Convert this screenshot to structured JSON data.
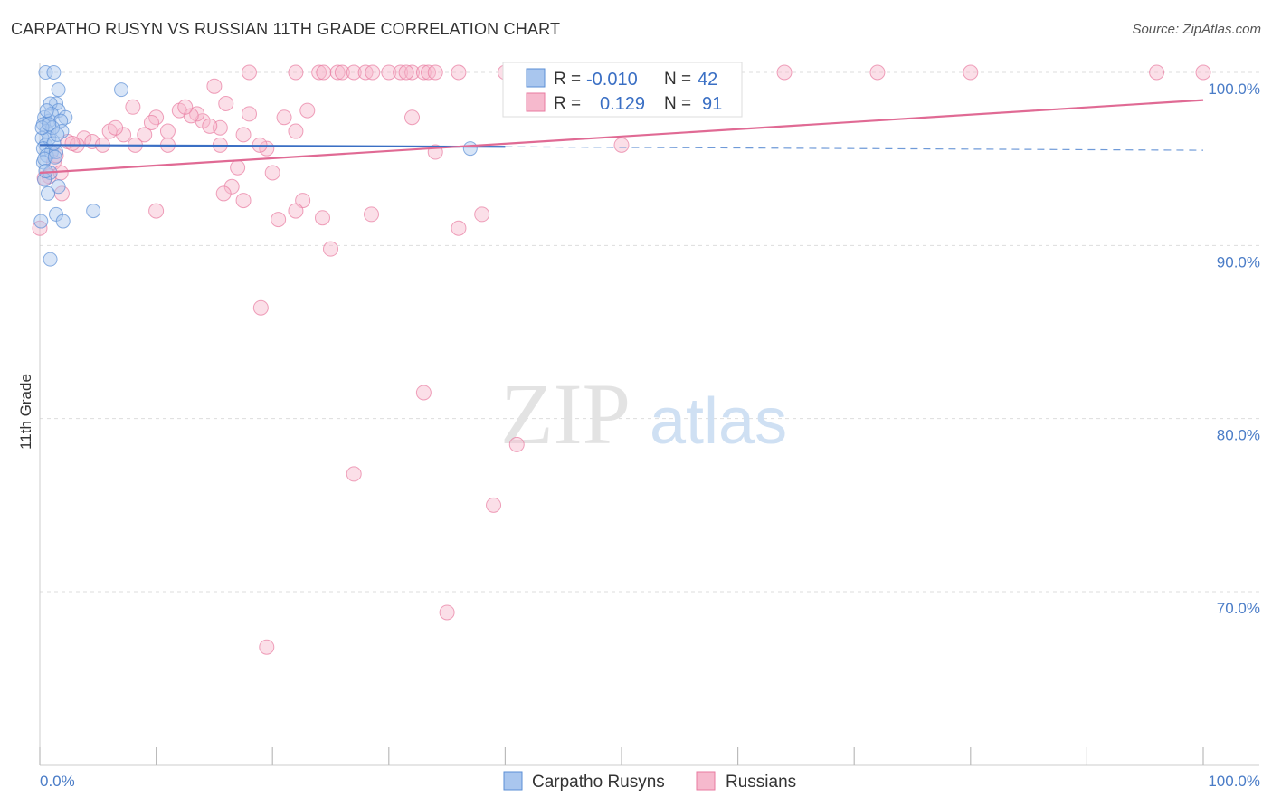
{
  "title": "CARPATHO RUSYN VS RUSSIAN 11TH GRADE CORRELATION CHART",
  "source": "Source: ZipAtlas.com",
  "watermark": {
    "zip": "ZIP",
    "atlas": "atlas"
  },
  "colors": {
    "blue": "#5b8fd6",
    "blue_fill": "#a9c6ee",
    "pink": "#e87aa0",
    "pink_fill": "#f6b9cd",
    "grid": "#dddddd",
    "tick_label": "#4a7cc7"
  },
  "chart_data": {
    "type": "scatter",
    "title": "CARPATHO RUSYN VS RUSSIAN 11TH GRADE CORRELATION CHART",
    "xlabel": "",
    "ylabel": "11th Grade",
    "xlim": [
      0,
      100
    ],
    "ylim": [
      60,
      100
    ],
    "x_tick_labels": [
      "0.0%",
      "100.0%"
    ],
    "y_tick_labels": [
      {
        "value": 100,
        "label": "100.0%"
      },
      {
        "value": 90,
        "label": "90.0%"
      },
      {
        "value": 80,
        "label": "80.0%"
      },
      {
        "value": 70,
        "label": "70.0%"
      }
    ],
    "legend": {
      "entries": [
        {
          "r_label": "R =",
          "r_value": "-0.010",
          "n_label": "N =",
          "n_value": "42"
        },
        {
          "r_label": "R =",
          "r_value": "0.129",
          "n_label": "N =",
          "n_value": "91"
        }
      ]
    },
    "series": [
      {
        "name": "Carpatho Rusyns",
        "r": -0.01,
        "n": 42,
        "trend": {
          "x0": 0,
          "y0": 95.8,
          "x1": 40,
          "y1": 95.7,
          "dash_x1": 100,
          "dash_y1": 95.5
        },
        "points": [
          [
            0.5,
            100
          ],
          [
            1.2,
            100
          ],
          [
            7,
            99
          ],
          [
            1.6,
            99
          ],
          [
            1.4,
            98.2
          ],
          [
            0.9,
            98.2
          ],
          [
            1.6,
            97.8
          ],
          [
            0.4,
            97.4
          ],
          [
            0.8,
            97.2
          ],
          [
            1.0,
            97.6
          ],
          [
            2.2,
            97.4
          ],
          [
            0.3,
            97.0
          ],
          [
            1.8,
            97.2
          ],
          [
            0.6,
            96.6
          ],
          [
            0.2,
            96.2
          ],
          [
            0.5,
            95.8
          ],
          [
            0.8,
            96.2
          ],
          [
            0.3,
            95.6
          ],
          [
            1.0,
            95.4
          ],
          [
            0.6,
            95.2
          ],
          [
            1.4,
            95.4
          ],
          [
            0.3,
            94.8
          ],
          [
            0.9,
            94.2
          ],
          [
            0.4,
            93.8
          ],
          [
            1.6,
            93.4
          ],
          [
            0.7,
            93.0
          ],
          [
            1.4,
            91.8
          ],
          [
            2.0,
            91.4
          ],
          [
            0.1,
            91.4
          ],
          [
            4.6,
            92.0
          ],
          [
            0.9,
            89.2
          ],
          [
            37,
            95.6
          ],
          [
            1.9,
            96.6
          ],
          [
            0.6,
            97.8
          ],
          [
            1.1,
            96.8
          ],
          [
            0.4,
            95.0
          ],
          [
            1.2,
            95.9
          ],
          [
            0.2,
            96.8
          ],
          [
            1.5,
            96.4
          ],
          [
            0.8,
            97.0
          ],
          [
            0.5,
            94.3
          ],
          [
            1.3,
            95.1
          ]
        ]
      },
      {
        "name": "Russians",
        "r": 0.129,
        "n": 91,
        "trend": {
          "x0": 0,
          "y0": 94.2,
          "x1": 100,
          "y1": 98.4
        },
        "points": [
          [
            18,
            100
          ],
          [
            24,
            100
          ],
          [
            24.4,
            100
          ],
          [
            25.6,
            100
          ],
          [
            26,
            100
          ],
          [
            27,
            100
          ],
          [
            28,
            100
          ],
          [
            30,
            100
          ],
          [
            31,
            100
          ],
          [
            32,
            100
          ],
          [
            33,
            100
          ],
          [
            33.4,
            100
          ],
          [
            34,
            100
          ],
          [
            36,
            100
          ],
          [
            40,
            100
          ],
          [
            44,
            100
          ],
          [
            47,
            100
          ],
          [
            53,
            100
          ],
          [
            59,
            100
          ],
          [
            64,
            100
          ],
          [
            72,
            100
          ],
          [
            80,
            100
          ],
          [
            96,
            100
          ],
          [
            100,
            100
          ],
          [
            22,
            100
          ],
          [
            28.6,
            100
          ],
          [
            31.5,
            100
          ],
          [
            15,
            99.2
          ],
          [
            8,
            98
          ],
          [
            12,
            97.8
          ],
          [
            16,
            98.2
          ],
          [
            10,
            97.4
          ],
          [
            14,
            97.2
          ],
          [
            18,
            97.6
          ],
          [
            23,
            97.8
          ],
          [
            21,
            97.4
          ],
          [
            32,
            97.4
          ],
          [
            6,
            96.6
          ],
          [
            3.8,
            96.2
          ],
          [
            9,
            96.4
          ],
          [
            11,
            96.6
          ],
          [
            13.5,
            97.6
          ],
          [
            15.5,
            96.8
          ],
          [
            17.5,
            96.4
          ],
          [
            22,
            96.6
          ],
          [
            4.5,
            96
          ],
          [
            2.4,
            96
          ],
          [
            3.2,
            95.8
          ],
          [
            8.2,
            95.8
          ],
          [
            11,
            95.8
          ],
          [
            15.5,
            95.8
          ],
          [
            19.5,
            95.6
          ],
          [
            34,
            95.4
          ],
          [
            50,
            95.8
          ],
          [
            1.2,
            94.8
          ],
          [
            0.8,
            94
          ],
          [
            1.8,
            94.2
          ],
          [
            17,
            94.5
          ],
          [
            20,
            94.2
          ],
          [
            16.5,
            93.4
          ],
          [
            15.8,
            93
          ],
          [
            17.5,
            92.6
          ],
          [
            22.6,
            92.6
          ],
          [
            1.9,
            93
          ],
          [
            10,
            92
          ],
          [
            22,
            92
          ],
          [
            20.5,
            91.5
          ],
          [
            24.3,
            91.6
          ],
          [
            28.5,
            91.8
          ],
          [
            36,
            91
          ],
          [
            38,
            91.8
          ],
          [
            25,
            89.8
          ],
          [
            19,
            86.4
          ],
          [
            33,
            81.5
          ],
          [
            41,
            78.5
          ],
          [
            27,
            76.8
          ],
          [
            39,
            75
          ],
          [
            35,
            68.8
          ],
          [
            19.5,
            66.8
          ],
          [
            0,
            91
          ],
          [
            5.4,
            95.8
          ],
          [
            7.2,
            96.4
          ],
          [
            13,
            97.5
          ],
          [
            6.5,
            96.8
          ],
          [
            2.8,
            95.9
          ],
          [
            9.6,
            97.1
          ],
          [
            12.5,
            98
          ],
          [
            14.6,
            96.9
          ],
          [
            18.9,
            95.8
          ],
          [
            0.4,
            93.9
          ],
          [
            1.4,
            95.2
          ]
        ]
      }
    ]
  },
  "bottom_legend": [
    {
      "label": "Carpatho Rusyns"
    },
    {
      "label": "Russians"
    }
  ]
}
